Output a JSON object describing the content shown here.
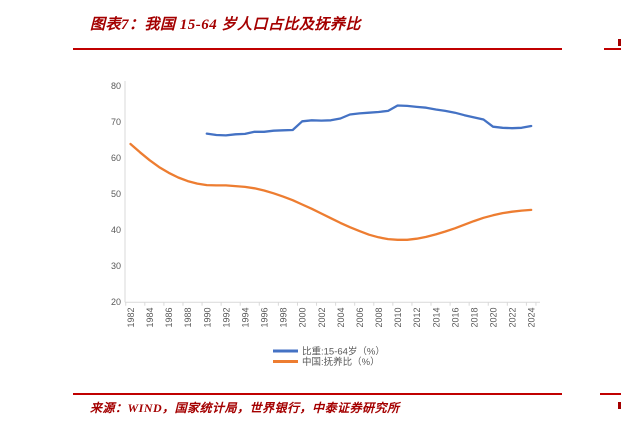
{
  "title": {
    "text": "图表7：我国 15-64 岁人口占比及抚养比"
  },
  "source": {
    "text": "来源：WIND，国家统计局，世界银行，中泰证券研究所"
  },
  "colors": {
    "title_red": "#A40000",
    "rule_red": "#C00000",
    "line_blue": "#4472C4",
    "line_orange": "#ED7D31",
    "axis_text": "#595959",
    "axis_line": "#D9D9D9"
  },
  "chart_data": {
    "type": "line",
    "title": "图表7：我国 15-64 岁人口占比及抚养比",
    "x_start": 1982,
    "x_end": 2024,
    "xticks": [
      1982,
      1984,
      1986,
      1988,
      1990,
      1992,
      1994,
      1996,
      1998,
      2000,
      2002,
      2004,
      2006,
      2008,
      2010,
      2012,
      2014,
      2016,
      2018,
      2020,
      2022,
      2024
    ],
    "ylim": [
      20,
      80
    ],
    "yticks": [
      80,
      70,
      60,
      50,
      40,
      30,
      20
    ],
    "grid": false,
    "legend_position": "bottom-center",
    "series": [
      {
        "name": "比重:15-64岁（%）",
        "color": "#4472C4",
        "start_year": 1990,
        "values": [
          66.7,
          66.3,
          66.2,
          66.5,
          66.6,
          67.2,
          67.2,
          67.5,
          67.6,
          67.7,
          70.1,
          70.4,
          70.3,
          70.4,
          70.9,
          72.0,
          72.3,
          72.5,
          72.7,
          73.0,
          74.5,
          74.4,
          74.1,
          73.9,
          73.4,
          73.0,
          72.5,
          71.8,
          71.2,
          70.6,
          68.6,
          68.3,
          68.2,
          68.3,
          68.8
        ]
      },
      {
        "name": "中国:抚养比（%）",
        "color": "#ED7D31",
        "start_year": 1982,
        "values": [
          63.8,
          61.5,
          59.3,
          57.4,
          55.8,
          54.5,
          53.5,
          52.8,
          52.4,
          52.3,
          52.3,
          52.1,
          51.9,
          51.5,
          50.9,
          50.1,
          49.2,
          48.2,
          47.0,
          45.8,
          44.5,
          43.2,
          41.9,
          40.7,
          39.6,
          38.6,
          37.9,
          37.4,
          37.2,
          37.2,
          37.5,
          38.0,
          38.7,
          39.5,
          40.4,
          41.4,
          42.4,
          43.3,
          44.0,
          44.6,
          45.0,
          45.3,
          45.5
        ]
      }
    ]
  }
}
